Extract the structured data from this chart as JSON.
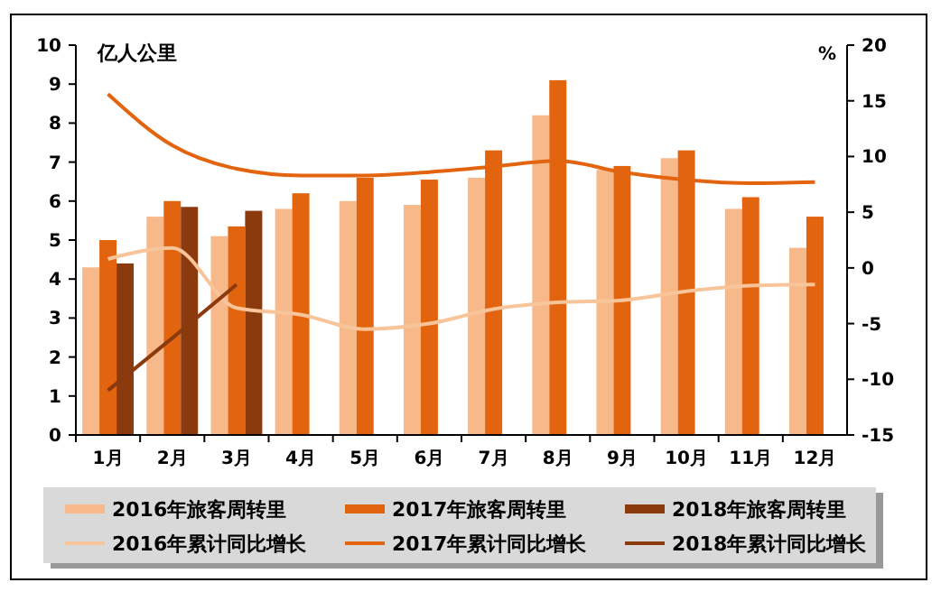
{
  "chart_data": {
    "type": "bar",
    "ylabel": "亿人公里",
    "y2label": "%",
    "categories": [
      "1月",
      "2月",
      "3月",
      "4月",
      "5月",
      "6月",
      "7月",
      "8月",
      "9月",
      "10月",
      "11月",
      "12月"
    ],
    "ylim": [
      0,
      10
    ],
    "yticks": [
      0,
      1,
      2,
      3,
      4,
      5,
      6,
      7,
      8,
      9,
      10
    ],
    "y2lim": [
      -15,
      20
    ],
    "y2ticks": [
      -15,
      -10,
      -5,
      0,
      5,
      10,
      15,
      20
    ],
    "grid": false,
    "legend": "bottom",
    "marker": "none",
    "line_style": "solid",
    "series": [
      {
        "name": "2016年旅客周转里",
        "color": "#f8b98a",
        "values": [
          4.3,
          5.6,
          5.1,
          5.8,
          6.0,
          5.9,
          6.6,
          8.2,
          6.8,
          7.1,
          5.8,
          4.8
        ]
      },
      {
        "name": "2017年旅客周转里",
        "color": "#e3640f",
        "values": [
          5.0,
          6.0,
          5.35,
          6.2,
          6.6,
          6.55,
          7.3,
          9.1,
          6.9,
          7.3,
          6.1,
          5.6
        ]
      },
      {
        "name": "2018年旅客周转里",
        "color": "#8b3a0e",
        "values": [
          4.4,
          5.85,
          5.75,
          null,
          null,
          null,
          null,
          null,
          null,
          null,
          null,
          null
        ]
      },
      {
        "name": "2016年累计同比增长",
        "type": "line",
        "axis": "y2",
        "color": "#f8c49a",
        "values": [
          0.8,
          1.8,
          -3.6,
          -4.2,
          -5.5,
          -5.0,
          -3.7,
          -3.1,
          -2.9,
          -2.1,
          -1.6,
          -1.5
        ]
      },
      {
        "name": "2017年累计同比增长",
        "type": "line",
        "axis": "y2",
        "color": "#e3640f",
        "values": [
          15.6,
          11.0,
          8.9,
          8.3,
          8.3,
          8.6,
          9.1,
          9.6,
          8.6,
          7.9,
          7.6,
          7.7
        ]
      },
      {
        "name": "2018年累计同比增长",
        "type": "line",
        "axis": "y2",
        "color": "#8b3a0e",
        "values": [
          -11.0,
          -6.3,
          -1.5,
          null,
          null,
          null,
          null,
          null,
          null,
          null,
          null,
          null
        ]
      }
    ]
  }
}
